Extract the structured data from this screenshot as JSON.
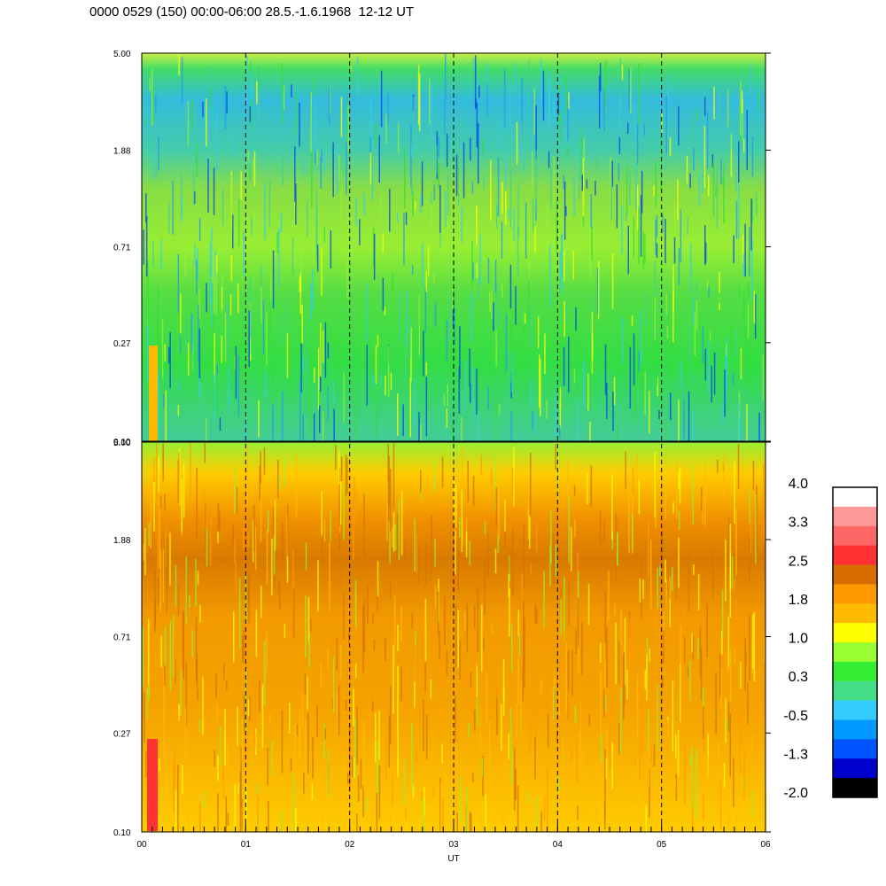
{
  "title": "0000 0529 (150) 00:00-06:00 28.5.-1.6.1968  12-12 UT",
  "chart_data": [
    {
      "type": "heatmap",
      "panel": "top",
      "y_ticks": [
        "5.00",
        "1.88",
        "0.71",
        "0.27",
        "0.10"
      ],
      "ylim": [
        0.1,
        5.0
      ],
      "y_scale": "log",
      "x_range_ut_hours": [
        0,
        6
      ],
      "dominant_colors": [
        "green",
        "cyan",
        "blue",
        "yellow"
      ]
    },
    {
      "type": "heatmap",
      "panel": "bottom",
      "y_ticks": [
        "5.00",
        "1.88",
        "0.71",
        "0.27",
        "0.10"
      ],
      "ylim": [
        0.1,
        5.0
      ],
      "y_scale": "log",
      "x_range_ut_hours": [
        0,
        6
      ],
      "dominant_colors": [
        "orange",
        "yellow",
        "dark-orange"
      ]
    }
  ],
  "x_axis": {
    "xlabel": "UT",
    "ticks": [
      "00",
      "01",
      "02",
      "03",
      "04",
      "05",
      "06"
    ],
    "dashed_lines_at_hours": [
      1,
      2,
      3,
      4,
      5
    ]
  },
  "colorbar": {
    "labels": [
      "4.0",
      "3.3",
      "2.5",
      "1.8",
      "1.0",
      "0.3",
      "-0.5",
      "-1.3",
      "-2.0"
    ],
    "colors_top_to_bottom": [
      "#ffffff",
      "#ff9999",
      "#ff6666",
      "#ff3333",
      "#d86e00",
      "#ff9900",
      "#ffbb00",
      "#ffff00",
      "#99ff33",
      "#33ee33",
      "#44dd88",
      "#33ccff",
      "#0099ff",
      "#0055ff",
      "#0000cc",
      "#000000"
    ]
  }
}
